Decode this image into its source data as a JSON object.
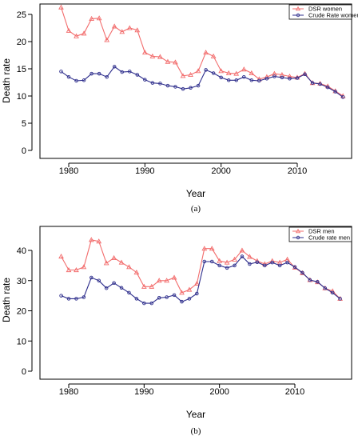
{
  "chart_data": [
    {
      "type": "line",
      "caption": "(a)",
      "xlabel": "Year",
      "ylabel": "Death rate",
      "xlim": [
        1978,
        2017
      ],
      "ylim": [
        0,
        27
      ],
      "xticks": [
        "1980",
        "1990",
        "2000",
        "2010"
      ],
      "yticks": [
        "0",
        "5",
        "10",
        "15",
        "20",
        "25"
      ],
      "legend_position": "top-right",
      "x": [
        1979,
        1980,
        1981,
        1982,
        1983,
        1984,
        1985,
        1986,
        1987,
        1988,
        1989,
        1990,
        1991,
        1992,
        1993,
        1994,
        1995,
        1996,
        1997,
        1998,
        1999,
        2000,
        2001,
        2002,
        2003,
        2004,
        2005,
        2006,
        2007,
        2008,
        2009,
        2010,
        2011,
        2012,
        2013,
        2014,
        2015,
        2016
      ],
      "series": [
        {
          "name": "DSR women",
          "color": "#f26d6d",
          "marker": "triangle",
          "values": [
            26.3,
            22.0,
            21.0,
            21.5,
            24.2,
            24.3,
            20.3,
            22.8,
            21.8,
            22.5,
            22.1,
            18.0,
            17.3,
            17.2,
            16.3,
            16.2,
            13.7,
            13.9,
            14.6,
            18.0,
            17.3,
            14.6,
            14.2,
            14.1,
            14.9,
            14.2,
            13.1,
            13.5,
            14.1,
            13.9,
            13.6,
            13.4,
            14.1,
            12.4,
            12.3,
            11.8,
            10.9,
            10.0
          ]
        },
        {
          "name": "Crude Rate women",
          "color": "#2e2e8c",
          "marker": "circle",
          "values": [
            14.5,
            13.5,
            12.8,
            12.9,
            14.1,
            14.1,
            13.5,
            15.4,
            14.4,
            14.5,
            13.9,
            13.0,
            12.4,
            12.3,
            11.9,
            11.7,
            11.3,
            11.5,
            11.9,
            14.8,
            14.2,
            13.4,
            12.9,
            12.9,
            13.5,
            12.9,
            12.8,
            13.2,
            13.6,
            13.4,
            13.2,
            13.3,
            14.0,
            12.4,
            12.2,
            11.6,
            10.8,
            9.8
          ]
        }
      ]
    },
    {
      "type": "line",
      "caption": "(b)",
      "xlabel": "Year",
      "ylabel": "Death rate",
      "xlim": [
        1978,
        2017
      ],
      "ylim": [
        0,
        45
      ],
      "xticks": [
        "1980",
        "1990",
        "2000",
        "2010"
      ],
      "yticks": [
        "0",
        "10",
        "20",
        "30",
        "40"
      ],
      "legend_position": "top-right",
      "x": [
        1979,
        1980,
        1981,
        1982,
        1983,
        1984,
        1985,
        1986,
        1987,
        1988,
        1989,
        1990,
        1991,
        1992,
        1993,
        1994,
        1995,
        1996,
        1997,
        1998,
        1999,
        2000,
        2001,
        2002,
        2003,
        2004,
        2005,
        2006,
        2007,
        2008,
        2009,
        2010,
        2011,
        2012,
        2013,
        2014,
        2015,
        2016
      ],
      "series": [
        {
          "name": "DSR men",
          "color": "#f26d6d",
          "marker": "triangle",
          "values": [
            38.0,
            33.5,
            33.5,
            34.5,
            43.5,
            43.0,
            35.8,
            37.5,
            36.0,
            34.5,
            32.7,
            28.0,
            28.0,
            30.0,
            30.0,
            31.0,
            26.0,
            27.0,
            29.0,
            40.6,
            40.6,
            36.5,
            36.0,
            37.0,
            40.0,
            37.9,
            36.5,
            35.5,
            36.5,
            36.0,
            37.0,
            34.3,
            32.5,
            30.2,
            29.5,
            27.5,
            26.5,
            24.0
          ]
        },
        {
          "name": "Crude rate men",
          "color": "#2e2e8c",
          "marker": "circle",
          "values": [
            25.0,
            24.0,
            24.0,
            24.5,
            31.0,
            30.0,
            27.5,
            29.2,
            27.6,
            26.0,
            24.0,
            22.5,
            22.5,
            24.3,
            24.5,
            25.2,
            23.0,
            24.0,
            25.7,
            36.3,
            36.3,
            35.0,
            34.2,
            35.0,
            38.0,
            35.5,
            36.1,
            35.0,
            36.0,
            35.0,
            36.0,
            34.5,
            32.6,
            30.2,
            29.6,
            27.5,
            26.0,
            24.0
          ]
        }
      ]
    }
  ]
}
